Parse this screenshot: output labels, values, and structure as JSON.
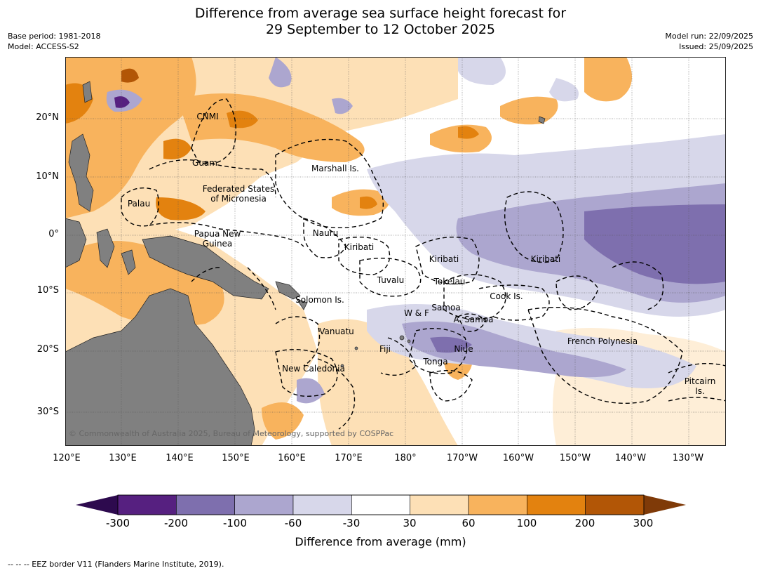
{
  "title": {
    "line1": "Difference from average sea surface height forecast for",
    "line2": "29 September to 12 October 2025"
  },
  "meta_left": {
    "base_period": "Base period: 1981-2018",
    "model": "Model: ACCESS-S2"
  },
  "meta_right": {
    "model_run": "Model run: 22/09/2025",
    "issued": "Issued: 25/09/2025"
  },
  "axes": {
    "lat_labels": [
      "20°N",
      "10°N",
      "0°",
      "10°S",
      "20°S",
      "30°S"
    ],
    "lon_labels": [
      "120°E",
      "130°E",
      "140°E",
      "150°E",
      "160°E",
      "170°E",
      "180°",
      "170°W",
      "160°W",
      "150°W",
      "140°W",
      "130°W"
    ]
  },
  "places": {
    "cnmi": "CNMI",
    "guam": "Guam",
    "marshall": "Marshall Is.",
    "fsm_1": "Federated States",
    "fsm_2": "of Micronesia",
    "palau": "Palau",
    "png_1": "Papua New",
    "png_2": "Guinea",
    "nauru": "Nauru",
    "kiribati_w": "Kiribati",
    "kiribati_c": "Kiribati",
    "kiribati_e": "Kiribati",
    "tuvalu": "Tuvalu",
    "tokelau": "Tokelau",
    "cook": "Cook Is.",
    "solomon": "Solomon Is.",
    "samoa": "Samoa",
    "wf": "W & F",
    "asamoa": "A. Samoa",
    "vanuatu": "Vanuatu",
    "fiji": "Fiji",
    "niue": "Niue",
    "tonga": "Tonga",
    "frpoly": "French Polynesia",
    "pitcairn_1": "Pitcairn",
    "pitcairn_2": "Is.",
    "newcal": "New Caledonia"
  },
  "copyright": "© Commonwealth of Australia 2025, Bureau of Meteorology, supported by COSPPac",
  "colorbar": {
    "ticks": [
      "-300",
      "-200",
      "-100",
      "-60",
      "-30",
      "30",
      "60",
      "100",
      "200",
      "300"
    ],
    "colors": [
      "#2d0a4e",
      "#562080",
      "#7e6fae",
      "#aca6cf",
      "#d7d7ea",
      "#ffffff",
      "#fde0b6",
      "#f8b35d",
      "#e3820f",
      "#b25606",
      "#7f3a08"
    ],
    "label": "Difference from average (mm)"
  },
  "footnote": "--  --  -- EEZ border V11 (Flanders Marine Institute, 2019)."
}
